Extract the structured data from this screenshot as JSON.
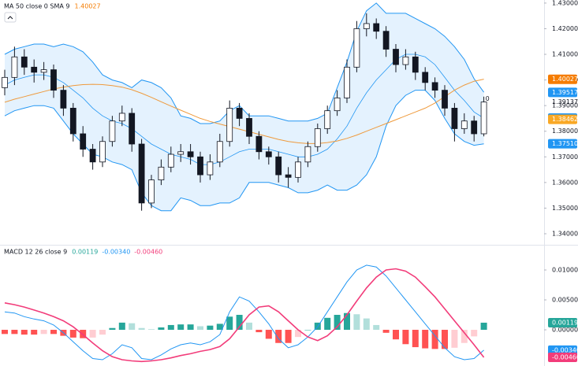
{
  "chart_data": [
    {
      "type": "candlestick",
      "title": "MA 50 close 0 SMA 9",
      "title_values": [
        {
          "value": 1.40027,
          "label": "1.40027",
          "color": "#f57c00"
        }
      ],
      "annotation": "0",
      "ylim": [
        1.336,
        1.4312
      ],
      "yticks": [
        {
          "value": 1.43,
          "label": "1.43000"
        },
        {
          "value": 1.42,
          "label": "1.42000"
        },
        {
          "value": 1.41,
          "label": "1.41000"
        },
        {
          "value": 1.4,
          "label": "1.40000"
        },
        {
          "value": 1.39,
          "label": "1.39000"
        },
        {
          "value": 1.38,
          "label": "1.38000"
        },
        {
          "value": 1.37,
          "label": "1.37000"
        },
        {
          "value": 1.36,
          "label": "1.36000"
        },
        {
          "value": 1.35,
          "label": "1.35000"
        },
        {
          "value": 1.34,
          "label": "1.34000"
        }
      ],
      "up_color": "#ffffff",
      "down_color": "#131722",
      "wick_color": "#131722",
      "open": [
        1.397,
        1.401,
        1.409,
        1.405,
        1.403,
        1.404,
        1.396,
        1.389,
        1.379,
        1.373,
        1.368,
        1.376,
        1.384,
        1.387,
        1.375,
        1.352,
        1.361,
        1.366,
        1.371,
        1.372,
        1.37,
        1.363,
        1.368,
        1.376,
        1.389,
        1.385,
        1.378,
        1.372,
        1.37,
        1.363,
        1.362,
        1.368,
        1.374,
        1.381,
        1.388,
        1.393,
        1.405,
        1.42,
        1.422,
        1.419,
        1.412,
        1.406,
        1.409,
        1.403,
        1.399,
        1.396,
        1.389,
        1.381,
        1.384,
        1.379
      ],
      "high": [
        1.404,
        1.413,
        1.412,
        1.408,
        1.407,
        1.406,
        1.398,
        1.391,
        1.382,
        1.375,
        1.378,
        1.386,
        1.39,
        1.389,
        1.377,
        1.363,
        1.369,
        1.374,
        1.375,
        1.375,
        1.372,
        1.371,
        1.379,
        1.392,
        1.391,
        1.387,
        1.38,
        1.374,
        1.372,
        1.366,
        1.37,
        1.376,
        1.383,
        1.39,
        1.396,
        1.408,
        1.423,
        1.426,
        1.424,
        1.421,
        1.414,
        1.412,
        1.411,
        1.405,
        1.401,
        1.398,
        1.391,
        1.387,
        1.386,
        1.3935
      ],
      "low": [
        1.394,
        1.398,
        1.402,
        1.399,
        1.4,
        1.393,
        1.386,
        1.376,
        1.37,
        1.365,
        1.366,
        1.374,
        1.382,
        1.372,
        1.349,
        1.35,
        1.359,
        1.364,
        1.368,
        1.367,
        1.36,
        1.361,
        1.366,
        1.374,
        1.382,
        1.375,
        1.369,
        1.367,
        1.36,
        1.358,
        1.36,
        1.366,
        1.372,
        1.379,
        1.386,
        1.391,
        1.403,
        1.417,
        1.416,
        1.409,
        1.403,
        1.404,
        1.4,
        1.396,
        1.393,
        1.386,
        1.376,
        1.379,
        1.376,
        1.378
      ],
      "close": [
        1.401,
        1.409,
        1.405,
        1.403,
        1.404,
        1.396,
        1.389,
        1.379,
        1.373,
        1.368,
        1.376,
        1.384,
        1.387,
        1.375,
        1.352,
        1.361,
        1.366,
        1.371,
        1.372,
        1.37,
        1.363,
        1.368,
        1.376,
        1.389,
        1.385,
        1.378,
        1.372,
        1.37,
        1.363,
        1.362,
        1.368,
        1.374,
        1.381,
        1.388,
        1.393,
        1.405,
        1.42,
        1.422,
        1.419,
        1.412,
        1.406,
        1.409,
        1.403,
        1.399,
        1.396,
        1.389,
        1.381,
        1.384,
        1.379,
        1.3914
      ],
      "band_fill": "rgba(33,150,243,0.12)",
      "series": [
        {
          "color": "#2196f3",
          "values": [
            1.41,
            1.412,
            1.413,
            1.414,
            1.414,
            1.413,
            1.414,
            1.413,
            1.411,
            1.407,
            1.402,
            1.4,
            1.399,
            1.397,
            1.4,
            1.399,
            1.397,
            1.393,
            1.386,
            1.385,
            1.383,
            1.383,
            1.384,
            1.388,
            1.39,
            1.386,
            1.386,
            1.386,
            1.385,
            1.384,
            1.384,
            1.384,
            1.385,
            1.387,
            1.397,
            1.407,
            1.419,
            1.427,
            1.43,
            1.426,
            1.426,
            1.426,
            1.424,
            1.422,
            1.42,
            1.417,
            1.413,
            1.408,
            1.4005,
            1.3952
          ]
        },
        {
          "color": "#2196f3",
          "values": [
            1.386,
            1.388,
            1.389,
            1.39,
            1.39,
            1.389,
            1.384,
            1.379,
            1.375,
            1.371,
            1.37,
            1.368,
            1.367,
            1.365,
            1.356,
            1.351,
            1.349,
            1.349,
            1.354,
            1.353,
            1.351,
            1.351,
            1.352,
            1.352,
            1.354,
            1.36,
            1.36,
            1.36,
            1.359,
            1.358,
            1.356,
            1.356,
            1.357,
            1.359,
            1.357,
            1.357,
            1.359,
            1.363,
            1.37,
            1.382,
            1.39,
            1.394,
            1.396,
            1.396,
            1.392,
            1.385,
            1.379,
            1.376,
            1.3745,
            1.3751
          ]
        },
        {
          "color": "#2196f3",
          "values": [
            1.398,
            1.4,
            1.401,
            1.402,
            1.402,
            1.401,
            1.399,
            1.396,
            1.393,
            1.389,
            1.386,
            1.384,
            1.383,
            1.381,
            1.378,
            1.375,
            1.373,
            1.371,
            1.37,
            1.369,
            1.367,
            1.367,
            1.368,
            1.37,
            1.372,
            1.373,
            1.373,
            1.373,
            1.372,
            1.371,
            1.37,
            1.37,
            1.371,
            1.373,
            1.377,
            1.382,
            1.389,
            1.395,
            1.4,
            1.404,
            1.408,
            1.41,
            1.41,
            1.409,
            1.406,
            1.401,
            1.396,
            1.392,
            1.3875,
            1.3851
          ]
        },
        {
          "color": "#ef9a3c",
          "values": [
            1.3913,
            1.3925,
            1.3935,
            1.3945,
            1.3955,
            1.3965,
            1.3972,
            1.3978,
            1.3982,
            1.3983,
            1.3982,
            1.3978,
            1.3972,
            1.3962,
            1.3948,
            1.3932,
            1.3915,
            1.3898,
            1.3882,
            1.3866,
            1.385,
            1.3838,
            1.3828,
            1.3818,
            1.3808,
            1.3798,
            1.3788,
            1.3778,
            1.3768,
            1.376,
            1.3755,
            1.3752,
            1.3752,
            1.3756,
            1.3762,
            1.3772,
            1.3785,
            1.38,
            1.3815,
            1.383,
            1.3845,
            1.386,
            1.3875,
            1.389,
            1.391,
            1.3935,
            1.396,
            1.398,
            1.3995,
            1.4003
          ]
        }
      ],
      "price_tags": [
        {
          "value": 1.40027,
          "label": "1.40027",
          "color": "#f57c00",
          "boxed": true
        },
        {
          "value": 1.39517,
          "label": "1.39517",
          "color": "#2196f3",
          "boxed": true
        },
        {
          "value": 1.39137,
          "label": "1.39137",
          "color": "#131722",
          "boxed": false
        },
        {
          "value": 1.38513,
          "label": "1.38513",
          "color": "#2196f3",
          "boxed": true
        },
        {
          "value": 1.38462,
          "label": "1.38462",
          "color": "#f9a825",
          "boxed": true
        },
        {
          "value": 1.3751,
          "label": "1.37510",
          "color": "#2196f3",
          "boxed": true
        }
      ]
    },
    {
      "type": "macd",
      "title": "MACD 12 26 close 9",
      "title_values": [
        {
          "value": 0.00119,
          "label": "0.00119",
          "color": "#26a69a"
        },
        {
          "value": -0.0034,
          "label": "-0.00340",
          "color": "#2196f3"
        },
        {
          "value": -0.0046,
          "label": "-0.00460",
          "color": "#f23c7a"
        }
      ],
      "ylim": [
        -0.00605,
        0.01408
      ],
      "yticks": [
        {
          "value": 0.01,
          "label": "0.01000"
        },
        {
          "value": 0.005,
          "label": "0.00500"
        },
        {
          "value": 0,
          "label": "0.00000"
        }
      ],
      "hist_colors": [
        "#26a69a",
        "#b2dfdb",
        "#ff5252",
        "#ffcdd2"
      ],
      "histogram": [
        -0.0007,
        -0.0007,
        -0.0008,
        -0.0008,
        -0.0007,
        -0.0007,
        -0.001,
        -0.0013,
        -0.0014,
        -0.0013,
        -0.0008,
        0.0003,
        0.0012,
        0.0011,
        0.0003,
        0.0001,
        0.0004,
        0.0008,
        0.0009,
        0.0009,
        0.0006,
        0.0007,
        0.001,
        0.0022,
        0.0025,
        0.0012,
        -0.0004,
        -0.0015,
        -0.0022,
        -0.0022,
        -0.0012,
        0,
        0.0012,
        0.002,
        0.0025,
        0.0028,
        0.0026,
        0.0019,
        0.0008,
        -0.0005,
        -0.0016,
        -0.0024,
        -0.0029,
        -0.0031,
        -0.0032,
        -0.0032,
        -0.003,
        -0.0022,
        -0.0011,
        0.00119
      ],
      "series": [
        {
          "color": "#2196f3",
          "values": [
            0.003,
            0.0028,
            0.0022,
            0.0018,
            0.0015,
            0.0008,
            -0.0005,
            -0.002,
            -0.0035,
            -0.0048,
            -0.005,
            -0.004,
            -0.0025,
            -0.003,
            -0.0048,
            -0.005,
            -0.0042,
            -0.0032,
            -0.0025,
            -0.0022,
            -0.0025,
            -0.002,
            -0.0008,
            0.003,
            0.0055,
            0.0048,
            0.003,
            0.001,
            -0.0015,
            -0.003,
            -0.0025,
            -0.0012,
            0.0005,
            0.003,
            0.0055,
            0.008,
            0.01,
            0.0108,
            0.0105,
            0.009,
            0.007,
            0.005,
            0.003,
            0.001,
            -0.001,
            -0.003,
            -0.0045,
            -0.005,
            -0.0048,
            -0.0034
          ]
        },
        {
          "color": "#f23c7a",
          "values": [
            0.0045,
            0.0042,
            0.0038,
            0.0033,
            0.0028,
            0.0022,
            0.0015,
            0.0005,
            -0.0008,
            -0.0022,
            -0.0035,
            -0.0045,
            -0.005,
            -0.0052,
            -0.0053,
            -0.0052,
            -0.005,
            -0.0047,
            -0.0043,
            -0.004,
            -0.0036,
            -0.0033,
            -0.0028,
            -0.0015,
            0.0005,
            0.0025,
            0.0038,
            0.004,
            0.003,
            0.0015,
            0,
            -0.0012,
            -0.0018,
            -0.001,
            0.0005,
            0.0025,
            0.0048,
            0.007,
            0.0088,
            0.01,
            0.0102,
            0.0098,
            0.0088,
            0.0072,
            0.0055,
            0.0035,
            0.0015,
            -0.0005,
            -0.0025,
            -0.0046
          ]
        }
      ],
      "price_tags": [
        {
          "value": 0.00119,
          "label": "0.00119",
          "color": "#26a69a",
          "boxed": true
        },
        {
          "value": -0.0034,
          "label": "-0.00340",
          "color": "#2196f3",
          "boxed": true
        },
        {
          "value": -0.0046,
          "label": "-0.00460",
          "color": "#f23c7a",
          "boxed": true
        }
      ]
    }
  ]
}
